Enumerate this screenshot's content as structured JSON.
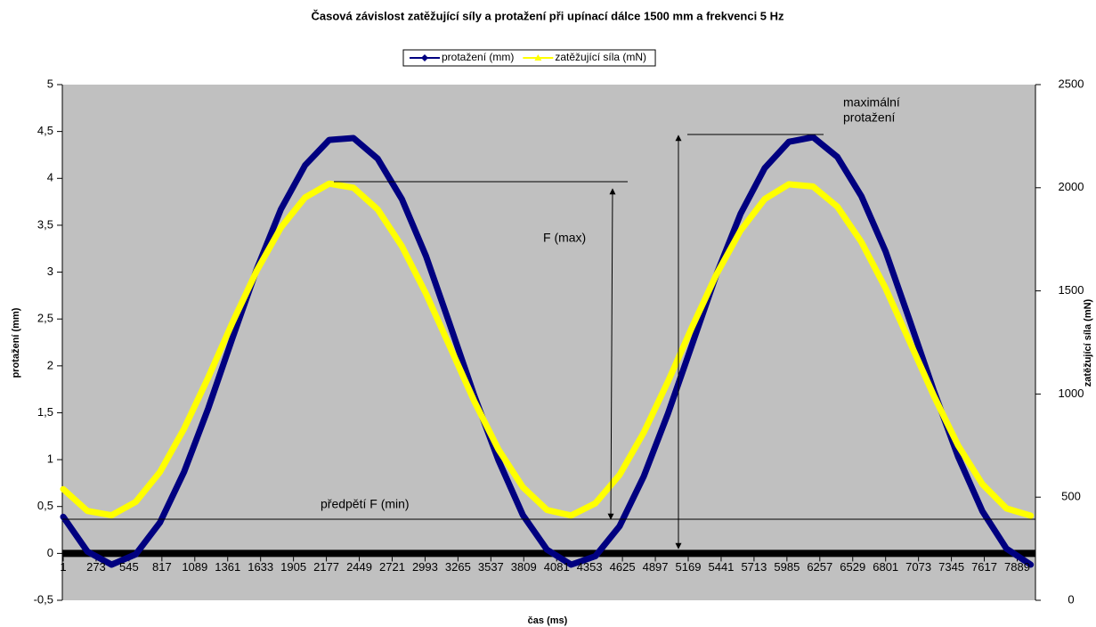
{
  "chart_data": {
    "type": "line",
    "title": "Časová závislost zatěžující síly a protažení při upínací dálce 1500 mm a frekvenci 5 Hz",
    "xlabel": "čas (ms)",
    "ylabel": "protažení (mm)",
    "y2label": "zatěžující síla (mN)",
    "x": [
      1,
      201,
      401,
      601,
      801,
      1001,
      1201,
      1401,
      1601,
      1801,
      2001,
      2201,
      2401,
      2601,
      2801,
      3001,
      3201,
      3401,
      3601,
      3801,
      4001,
      4201,
      4401,
      4601,
      4801,
      5001,
      5201,
      5401,
      5601,
      5801,
      6001,
      6201,
      6401,
      6601,
      6801,
      7001,
      7201,
      7401,
      7601,
      7801,
      8001
    ],
    "series": [
      {
        "name": "protažení (mm)",
        "color": "#000080",
        "marker": "diamond",
        "values": [
          0.39,
          0.02,
          -0.12,
          -0.01,
          0.33,
          0.87,
          1.55,
          2.3,
          3.03,
          3.67,
          4.14,
          4.41,
          4.43,
          4.21,
          3.78,
          3.17,
          2.43,
          1.68,
          0.99,
          0.41,
          0.04,
          -0.12,
          -0.03,
          0.29,
          0.82,
          1.49,
          2.23,
          2.97,
          3.62,
          4.11,
          4.39,
          4.44,
          4.23,
          3.81,
          3.22,
          2.48,
          1.73,
          1.03,
          0.45,
          0.05,
          -0.12
        ]
      },
      {
        "name": "zatěžující síla (mN)",
        "color": "#ffff00",
        "marker": "triangle",
        "axis": "y2",
        "values": [
          539,
          433,
          412,
          477,
          622,
          832,
          1081,
          1347,
          1597,
          1807,
          1953,
          2020,
          2000,
          1895,
          1717,
          1486,
          1226,
          964,
          730,
          549,
          438,
          411,
          470,
          608,
          813,
          1060,
          1325,
          1578,
          1792,
          1945,
          2017,
          2006,
          1909,
          1737,
          1512,
          1252,
          990,
          750,
          563,
          445,
          410
        ]
      }
    ],
    "xlim": [
      1,
      8040
    ],
    "xticks": [
      1,
      273,
      545,
      817,
      1089,
      1361,
      1633,
      1905,
      2177,
      2449,
      2721,
      2993,
      3265,
      3537,
      3809,
      4081,
      4353,
      4625,
      4897,
      5169,
      5441,
      5713,
      5985,
      6257,
      6529,
      6801,
      7073,
      7345,
      7617,
      7889
    ],
    "ylim": [
      -0.5,
      5
    ],
    "yticks": [
      {
        "value": -0.5,
        "label": "-0,5"
      },
      0,
      {
        "value": 0.5,
        "label": "0,5"
      },
      1,
      {
        "value": 1.5,
        "label": "1,5"
      },
      2,
      {
        "value": 2.5,
        "label": "2,5"
      },
      3,
      {
        "value": 3.5,
        "label": "3,5"
      },
      4,
      {
        "value": 4.5,
        "label": "4,5"
      },
      5
    ],
    "y2lim": [
      0,
      2500
    ],
    "y2ticks": [
      0,
      500,
      1000,
      1500,
      2000,
      2500
    ],
    "legend": "top",
    "plot_background": "#c0c0c0",
    "annotations": [
      {
        "text": [
          "maximální",
          "protažení"
        ]
      },
      {
        "text": [
          "F (max)"
        ]
      },
      {
        "text": [
          "předpětí F (min)"
        ]
      }
    ]
  }
}
